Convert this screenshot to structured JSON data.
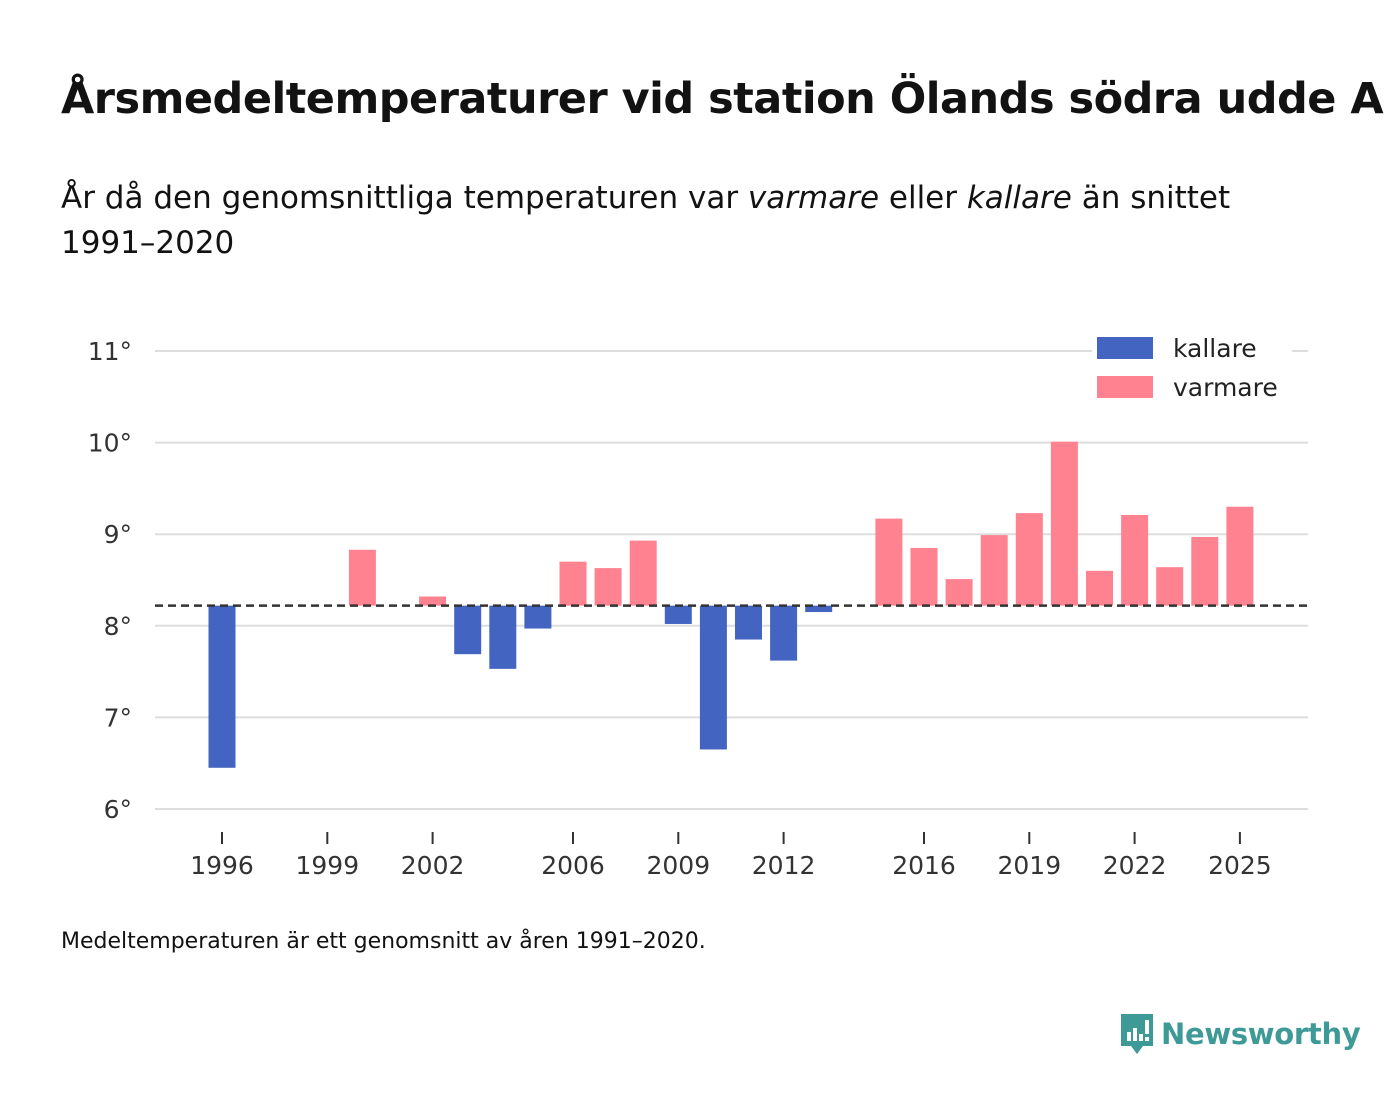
{
  "title": "Årsmedeltemperaturer vid station Ölands södra udde A",
  "subtitle": {
    "part1": "År då den genomsnittliga temperaturen var ",
    "warm_word": "varmare",
    "part2": " eller ",
    "cold_word": "kallare",
    "part3": " än snittet 1991–2020"
  },
  "footnote": "Medeltemperaturen är ett genomsnitt av åren 1991–2020.",
  "brand": {
    "name": "Newsworthy",
    "icon": "newsworthy-logo-icon"
  },
  "colors": {
    "cold": "#4364c1",
    "warm": "#ff8291",
    "grid": "#dddddd",
    "baseline": "#333333"
  },
  "chart_data": {
    "type": "bar",
    "baseline": 8.22,
    "ylim": [
      6,
      11.3
    ],
    "yticks": [
      6,
      7,
      8,
      9,
      10,
      11
    ],
    "ytick_labels": [
      "6°",
      "7°",
      "8°",
      "9°",
      "10°",
      "11°"
    ],
    "xticks": [
      1996,
      1999,
      2002,
      2006,
      2009,
      2012,
      2016,
      2019,
      2022,
      2025
    ],
    "legend": [
      {
        "name": "kallare",
        "color": "#4364c1"
      },
      {
        "name": "varmare",
        "color": "#ff8291"
      }
    ],
    "legend_position": "top-right",
    "series": [
      {
        "year": 1996,
        "value": 6.45
      },
      {
        "year": 2000,
        "value": 8.83
      },
      {
        "year": 2002,
        "value": 8.32
      },
      {
        "year": 2003,
        "value": 7.69
      },
      {
        "year": 2004,
        "value": 7.53
      },
      {
        "year": 2005,
        "value": 7.97
      },
      {
        "year": 2006,
        "value": 8.7
      },
      {
        "year": 2007,
        "value": 8.63
      },
      {
        "year": 2008,
        "value": 8.93
      },
      {
        "year": 2009,
        "value": 8.02
      },
      {
        "year": 2010,
        "value": 6.65
      },
      {
        "year": 2011,
        "value": 7.85
      },
      {
        "year": 2012,
        "value": 7.62
      },
      {
        "year": 2013,
        "value": 8.15
      },
      {
        "year": 2015,
        "value": 9.17
      },
      {
        "year": 2016,
        "value": 8.85
      },
      {
        "year": 2017,
        "value": 8.51
      },
      {
        "year": 2018,
        "value": 8.99
      },
      {
        "year": 2019,
        "value": 9.23
      },
      {
        "year": 2020,
        "value": 10.01
      },
      {
        "year": 2021,
        "value": 8.6
      },
      {
        "year": 2022,
        "value": 9.21
      },
      {
        "year": 2023,
        "value": 8.64
      },
      {
        "year": 2024,
        "value": 8.97
      },
      {
        "year": 2025,
        "value": 9.3
      }
    ]
  }
}
